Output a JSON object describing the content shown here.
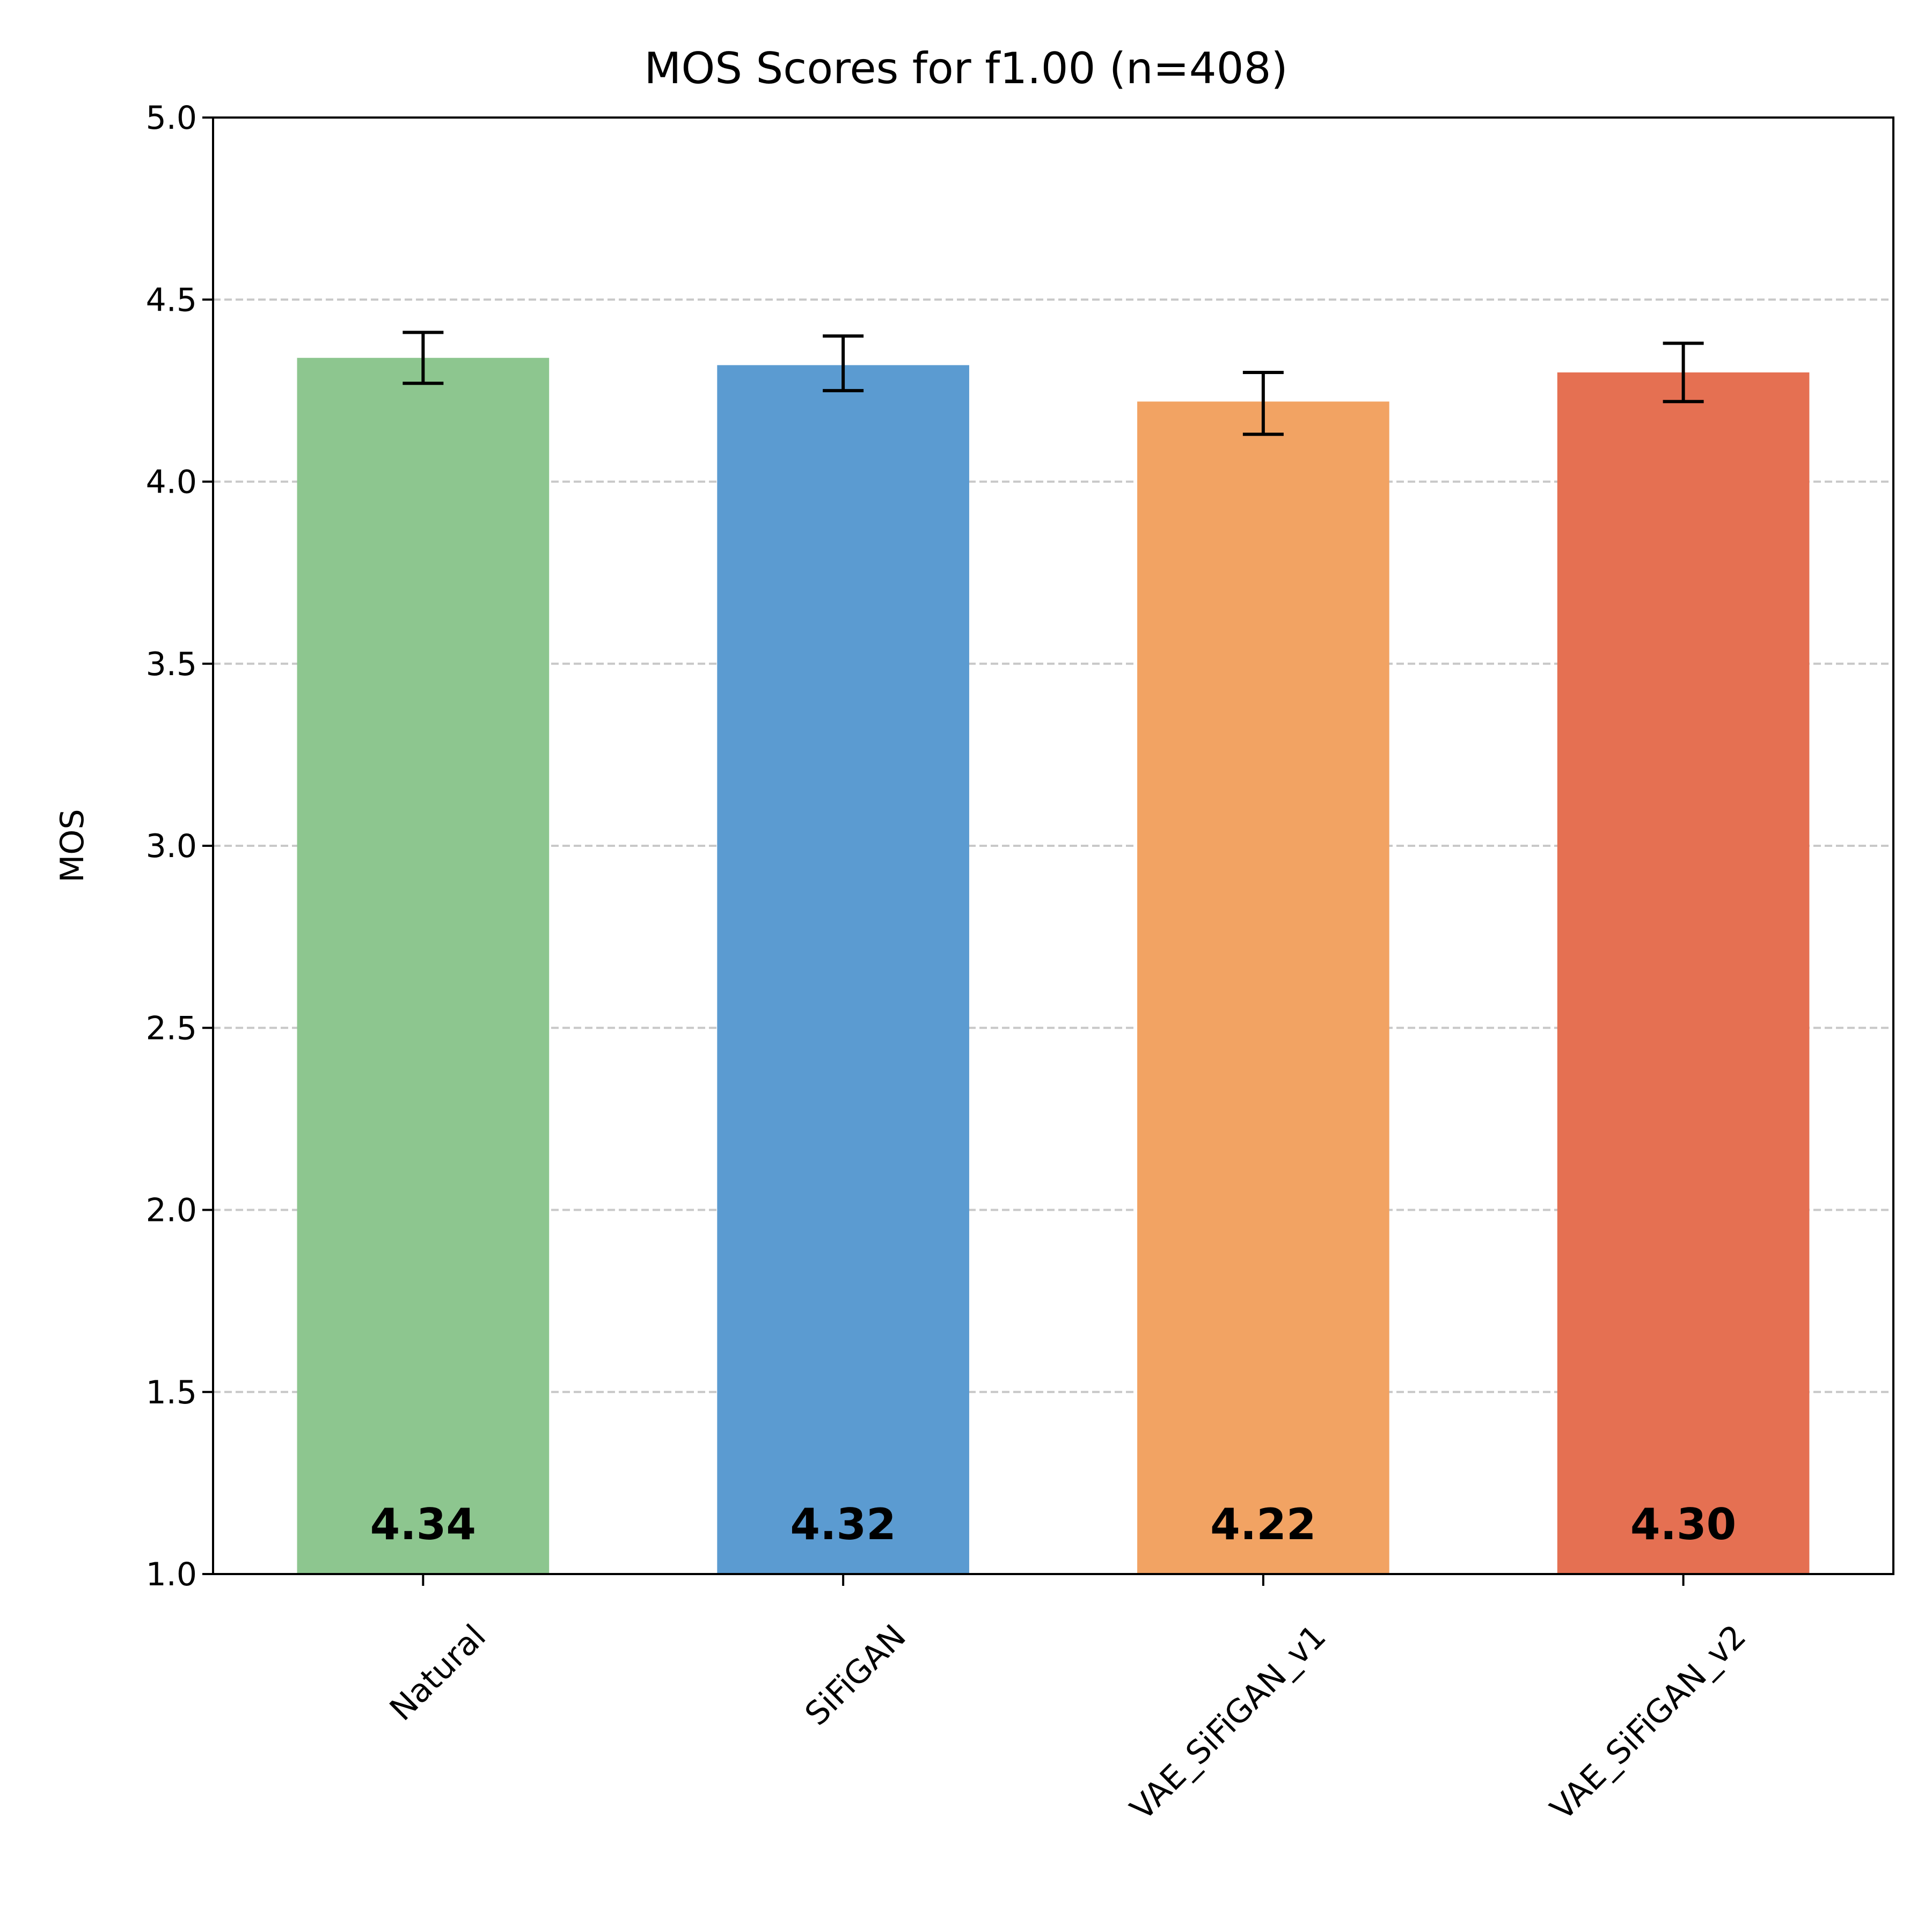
{
  "chart_data": {
    "type": "bar",
    "title": "MOS Scores for f1.00 (n=408)",
    "xlabel": "",
    "ylabel": "MOS",
    "ylim": [
      1.0,
      5.0
    ],
    "yticks": [
      "1.0",
      "1.5",
      "2.0",
      "2.5",
      "3.0",
      "3.5",
      "4.0",
      "4.5",
      "5.0"
    ],
    "grid": "horizontal dashed",
    "categories": [
      "Natural",
      "SiFiGAN",
      "VAE_SiFiGAN_v1",
      "VAE_SiFiGAN_v2"
    ],
    "values": [
      4.34,
      4.32,
      4.22,
      4.3
    ],
    "value_labels": [
      "4.34",
      "4.32",
      "4.22",
      "4.30"
    ],
    "error_low": [
      4.27,
      4.25,
      4.13,
      4.22
    ],
    "error_high": [
      4.41,
      4.4,
      4.3,
      4.38
    ],
    "colors": [
      "#8dc68f",
      "#5b9bd1",
      "#f2a363",
      "#e57052"
    ]
  }
}
